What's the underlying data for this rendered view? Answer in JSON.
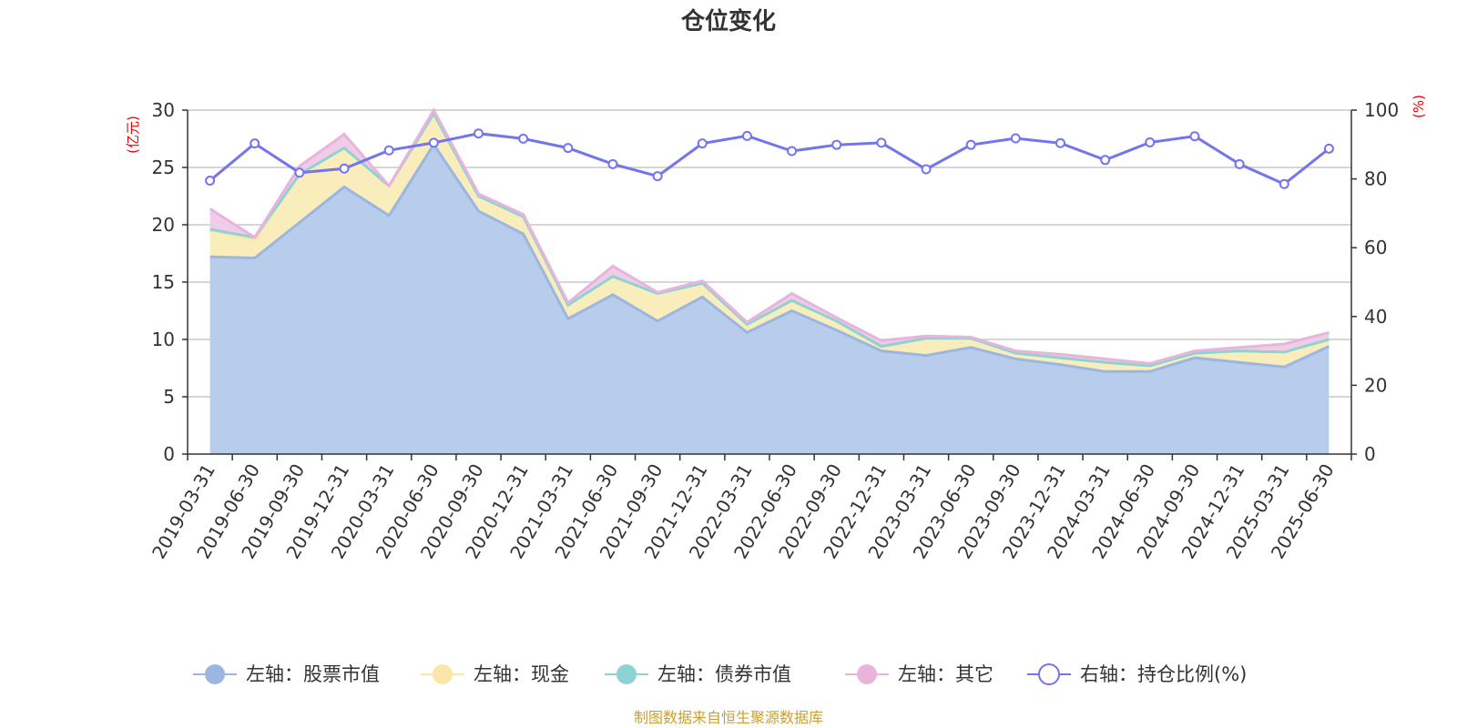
{
  "chart_data": {
    "type": "area",
    "title": "仓位变化",
    "left_unit": "(亿元)",
    "right_unit": "(%)",
    "categories": [
      "2019-03-31",
      "2019-06-30",
      "2019-09-30",
      "2019-12-31",
      "2020-03-31",
      "2020-06-30",
      "2020-09-30",
      "2020-12-31",
      "2021-03-31",
      "2021-06-30",
      "2021-09-30",
      "2021-12-31",
      "2022-03-31",
      "2022-06-30",
      "2022-09-30",
      "2022-12-31",
      "2023-03-31",
      "2023-06-30",
      "2023-09-30",
      "2023-12-31",
      "2024-03-31",
      "2024-06-30",
      "2024-09-30",
      "2024-12-31",
      "2025-03-31",
      "2025-06-30"
    ],
    "left_axis": {
      "min": 0,
      "max": 30,
      "ticks": [
        "0",
        "5",
        "10",
        "15",
        "20",
        "25",
        "30"
      ]
    },
    "right_axis": {
      "min": 0,
      "max": 100,
      "ticks": [
        "0",
        "20",
        "40",
        "60",
        "80",
        "100"
      ]
    },
    "series": [
      {
        "name": "左轴：股票市值",
        "axis": "left",
        "stacked": true,
        "color": "#9bb6e0",
        "fill": "#b8cceb",
        "values": [
          17.2,
          17.1,
          20.2,
          23.3,
          20.8,
          27.0,
          21.2,
          19.2,
          11.8,
          13.9,
          11.6,
          13.7,
          10.6,
          12.5,
          10.8,
          9.0,
          8.6,
          9.3,
          8.3,
          7.8,
          7.2,
          7.2,
          8.4,
          8.0,
          7.6,
          9.4
        ]
      },
      {
        "name": "左轴：现金",
        "axis": "left",
        "stacked": true,
        "color": "#f8e7a8",
        "fill": "#faedbc",
        "values": [
          2.3,
          1.6,
          4.2,
          3.4,
          2.6,
          2.6,
          1.3,
          1.5,
          1.2,
          1.6,
          2.4,
          1.2,
          0.7,
          0.9,
          0.8,
          0.3,
          1.5,
          0.8,
          0.5,
          0.6,
          0.8,
          0.5,
          0.4,
          1.0,
          1.3,
          0.6
        ]
      },
      {
        "name": "左轴：债券市值",
        "axis": "left",
        "stacked": true,
        "color": "#8dd3d3",
        "fill": "#a6dedd",
        "values": [
          0.1,
          0.2,
          0,
          0,
          0,
          0.1,
          0,
          0,
          0,
          0,
          0,
          0,
          0,
          0,
          0,
          0.1,
          0,
          0,
          0,
          0,
          0,
          0,
          0,
          0,
          0,
          0
        ]
      },
      {
        "name": "左轴：其它",
        "axis": "left",
        "stacked": true,
        "color": "#e8b4dc",
        "fill": "#f0cce8",
        "values": [
          1.8,
          0,
          0.7,
          1.2,
          0,
          0.3,
          0.2,
          0.2,
          0.2,
          0.9,
          0.1,
          0.2,
          0.2,
          0.6,
          0.3,
          0.5,
          0.2,
          0.1,
          0.2,
          0.3,
          0.3,
          0.2,
          0.2,
          0.3,
          0.7,
          0.6
        ]
      },
      {
        "name": "右轴：持仓比例(%)",
        "axis": "right",
        "stacked": false,
        "color": "#7474ee",
        "values": [
          79.5,
          90.3,
          81.8,
          83.0,
          88.3,
          90.5,
          93.2,
          91.7,
          89.0,
          84.3,
          80.8,
          90.3,
          92.5,
          88.1,
          89.9,
          90.5,
          82.8,
          89.9,
          91.8,
          90.4,
          85.5,
          90.6,
          92.4,
          84.3,
          78.5,
          88.8
        ]
      }
    ],
    "grid": true,
    "legend_position": "bottom",
    "source_note": "制图数据来自恒生聚源数据库"
  }
}
